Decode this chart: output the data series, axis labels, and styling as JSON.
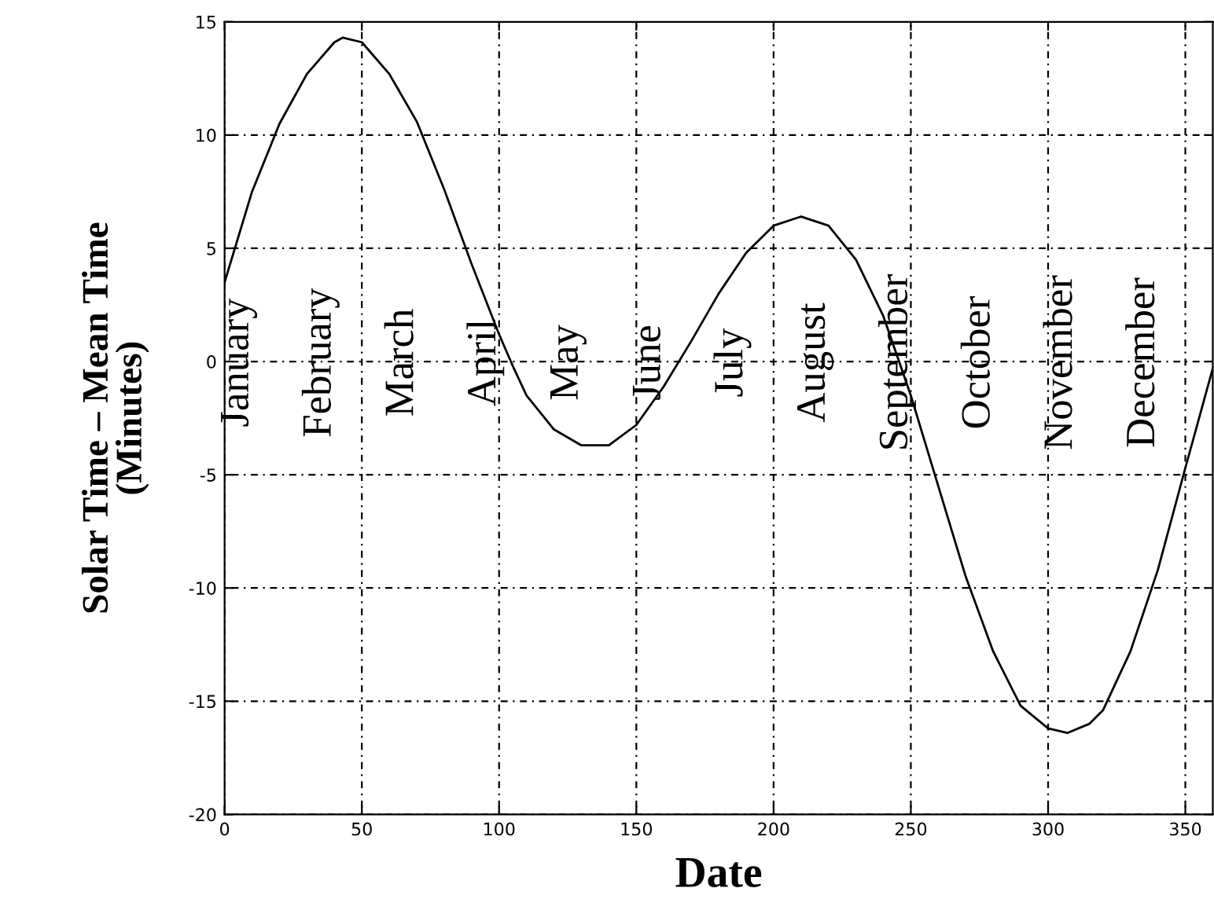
{
  "chart_data": {
    "type": "line",
    "xlabel": "Date",
    "ylabel": "Solar Time – Mean Time\n(Minutes)",
    "x": [
      0,
      10,
      20,
      30,
      40,
      43,
      50,
      60,
      70,
      80,
      90,
      100,
      105,
      110,
      120,
      130,
      140,
      150,
      160,
      170,
      180,
      190,
      200,
      210,
      220,
      230,
      240,
      250,
      260,
      270,
      280,
      290,
      300,
      307,
      315,
      320,
      330,
      340,
      350,
      360
    ],
    "series": [
      {
        "color": "#000000",
        "values": [
          3.5,
          7.5,
          10.5,
          12.7,
          14.1,
          14.3,
          14.1,
          12.7,
          10.6,
          7.6,
          4.3,
          1.2,
          -0.2,
          -1.5,
          -3.0,
          -3.7,
          -3.7,
          -2.8,
          -1.1,
          0.9,
          3.0,
          4.8,
          6.0,
          6.4,
          6.0,
          4.5,
          2.0,
          -1.5,
          -5.5,
          -9.5,
          -12.8,
          -15.2,
          -16.2,
          -16.4,
          -16.0,
          -15.4,
          -12.8,
          -9.2,
          -4.7,
          -0.3
        ]
      }
    ],
    "xlim": [
      0,
      360
    ],
    "xticks": [
      0,
      50,
      100,
      150,
      200,
      250,
      300,
      350
    ],
    "ylim": [
      -20,
      15
    ],
    "yticks": [
      -20,
      -15,
      -10,
      -5,
      0,
      5,
      10,
      15
    ],
    "grid": true,
    "legend": false,
    "marker": "none",
    "line_style": "solid",
    "annotations": [
      "January",
      "February",
      "March",
      "April",
      "May",
      "June",
      "July",
      "August",
      "September",
      "October",
      "November",
      "December"
    ]
  }
}
